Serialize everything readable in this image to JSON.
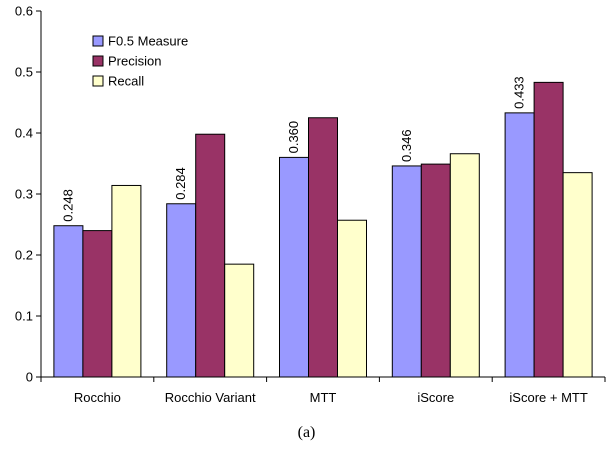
{
  "chart_data": {
    "type": "bar",
    "categories": [
      "Rocchio",
      "Rocchio Variant",
      "MTT",
      "iScore",
      "iScore + MTT"
    ],
    "series": [
      {
        "name": "F0.5 Measure",
        "values": [
          0.248,
          0.284,
          0.36,
          0.346,
          0.433
        ],
        "color": "#9999ff",
        "data_labels": [
          "0.248",
          "0.284",
          "0.360",
          "0.346",
          "0.433"
        ]
      },
      {
        "name": "Precision",
        "values": [
          0.24,
          0.398,
          0.425,
          0.349,
          0.483
        ],
        "color": "#993366"
      },
      {
        "name": "Recall",
        "values": [
          0.314,
          0.185,
          0.257,
          0.366,
          0.335
        ],
        "color": "#ffffcc"
      }
    ],
    "ylim": [
      0,
      0.6
    ],
    "yticks": [
      "0",
      "0.1",
      "0.2",
      "0.3",
      "0.4",
      "0.5",
      "0.6"
    ],
    "grid": false,
    "legend_position": "top-left"
  },
  "caption": "(a)"
}
